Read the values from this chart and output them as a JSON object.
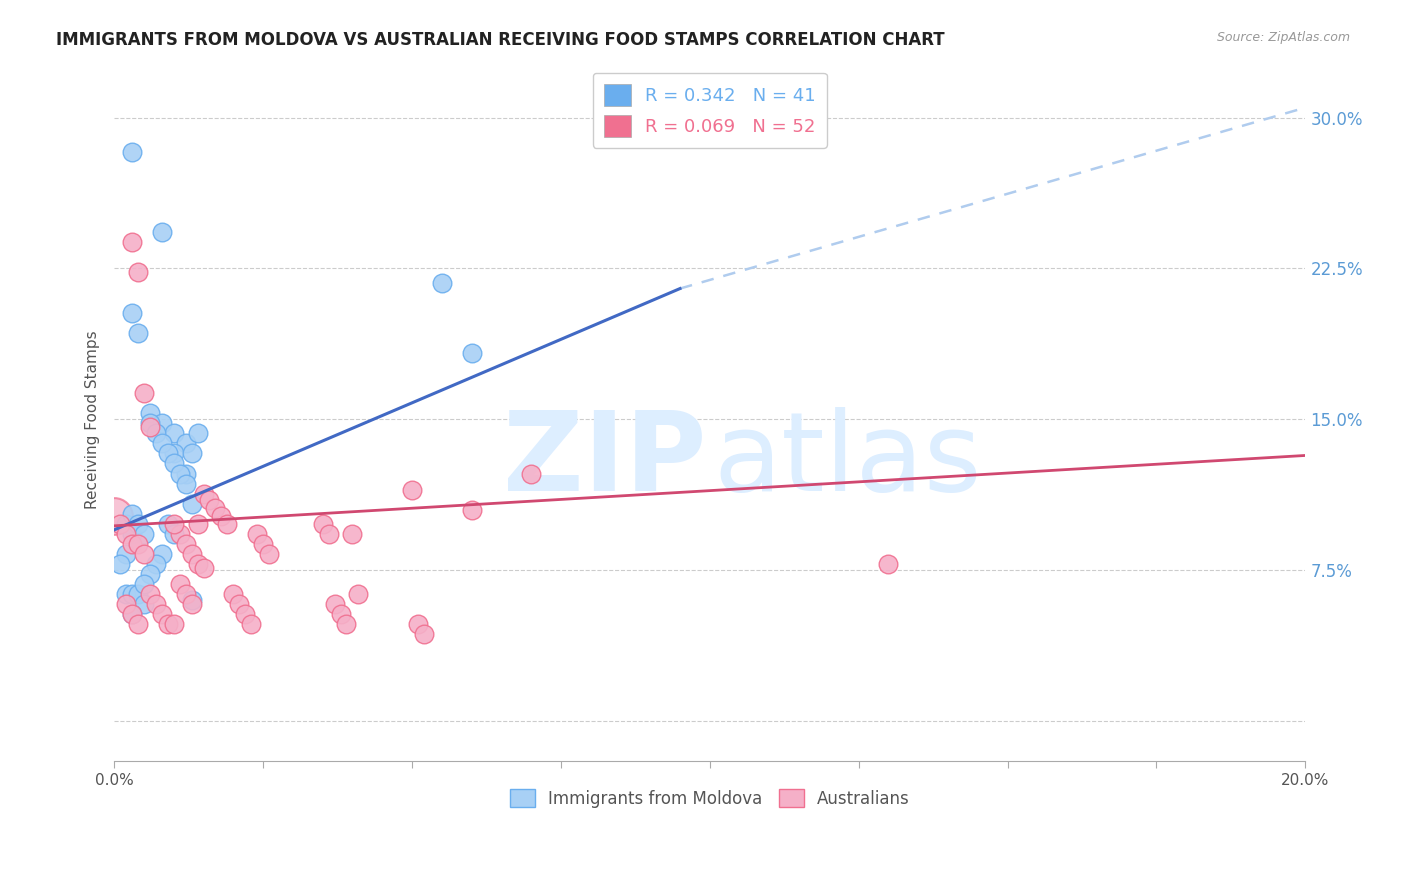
{
  "title": "IMMIGRANTS FROM MOLDOVA VS AUSTRALIAN RECEIVING FOOD STAMPS CORRELATION CHART",
  "source": "Source: ZipAtlas.com",
  "ylabel": "Receiving Food Stamps",
  "yticks": [
    0.0,
    0.075,
    0.15,
    0.225,
    0.3
  ],
  "ytick_labels": [
    "",
    "7.5%",
    "15.0%",
    "22.5%",
    "30.0%"
  ],
  "xticks": [
    0.0,
    0.025,
    0.05,
    0.075,
    0.1,
    0.125,
    0.15,
    0.175,
    0.2
  ],
  "xlim": [
    0.0,
    0.2
  ],
  "ylim": [
    -0.02,
    0.32
  ],
  "legend_entries": [
    {
      "label": "R = 0.342   N = 41",
      "color": "#6aaeee"
    },
    {
      "label": "R = 0.069   N = 52",
      "color": "#f07090"
    }
  ],
  "moldova_scatter_x": [
    0.003,
    0.008,
    0.003,
    0.004,
    0.006,
    0.008,
    0.01,
    0.012,
    0.01,
    0.013,
    0.014,
    0.013,
    0.012,
    0.002,
    0.003,
    0.002,
    0.001,
    0.002,
    0.003,
    0.004,
    0.005,
    0.003,
    0.009,
    0.01,
    0.008,
    0.007,
    0.006,
    0.005,
    0.055,
    0.06,
    0.003,
    0.004,
    0.005,
    0.006,
    0.007,
    0.008,
    0.009,
    0.01,
    0.011,
    0.012,
    0.013
  ],
  "moldova_scatter_y": [
    0.283,
    0.243,
    0.203,
    0.193,
    0.153,
    0.148,
    0.143,
    0.138,
    0.133,
    0.133,
    0.143,
    0.108,
    0.123,
    0.098,
    0.093,
    0.083,
    0.078,
    0.063,
    0.063,
    0.063,
    0.058,
    0.053,
    0.098,
    0.093,
    0.083,
    0.078,
    0.073,
    0.068,
    0.218,
    0.183,
    0.103,
    0.098,
    0.093,
    0.148,
    0.143,
    0.138,
    0.133,
    0.128,
    0.123,
    0.118,
    0.06
  ],
  "australia_scatter_x": [
    0.001,
    0.002,
    0.003,
    0.004,
    0.005,
    0.006,
    0.007,
    0.008,
    0.009,
    0.01,
    0.011,
    0.012,
    0.013,
    0.014,
    0.015,
    0.01,
    0.011,
    0.012,
    0.013,
    0.014,
    0.015,
    0.016,
    0.017,
    0.018,
    0.019,
    0.02,
    0.021,
    0.022,
    0.023,
    0.024,
    0.025,
    0.026,
    0.035,
    0.036,
    0.037,
    0.038,
    0.039,
    0.04,
    0.041,
    0.07,
    0.003,
    0.004,
    0.005,
    0.006,
    0.06,
    0.13,
    0.002,
    0.003,
    0.004,
    0.05,
    0.051,
    0.052
  ],
  "australia_scatter_y": [
    0.098,
    0.093,
    0.088,
    0.088,
    0.083,
    0.063,
    0.058,
    0.053,
    0.048,
    0.048,
    0.093,
    0.088,
    0.083,
    0.078,
    0.076,
    0.098,
    0.068,
    0.063,
    0.058,
    0.098,
    0.113,
    0.11,
    0.106,
    0.102,
    0.098,
    0.063,
    0.058,
    0.053,
    0.048,
    0.093,
    0.088,
    0.083,
    0.098,
    0.093,
    0.058,
    0.053,
    0.048,
    0.093,
    0.063,
    0.123,
    0.238,
    0.223,
    0.163,
    0.146,
    0.105,
    0.078,
    0.058,
    0.053,
    0.048,
    0.115,
    0.048,
    0.043
  ],
  "moldova_line_x1": 0.0,
  "moldova_line_y1": 0.095,
  "moldova_line_x2": 0.095,
  "moldova_line_y2": 0.215,
  "dashed_line_x1": 0.095,
  "dashed_line_y1": 0.215,
  "dashed_line_x2": 0.2,
  "dashed_line_y2": 0.305,
  "australia_line_x1": 0.0,
  "australia_line_y1": 0.097,
  "australia_line_x2": 0.2,
  "australia_line_y2": 0.132,
  "scatter_color_moldova": "#a8d0f5",
  "scatter_color_australia": "#f5b0c8",
  "scatter_edge_moldova": "#6aaeee",
  "scatter_edge_australia": "#f07090",
  "line_color_moldova": "#4169c4",
  "line_color_australia": "#d04870",
  "line_color_dashed": "#b0ccee",
  "background_color": "#ffffff",
  "watermark_color": "#ddeeff",
  "title_fontsize": 12,
  "label_fontsize": 11
}
